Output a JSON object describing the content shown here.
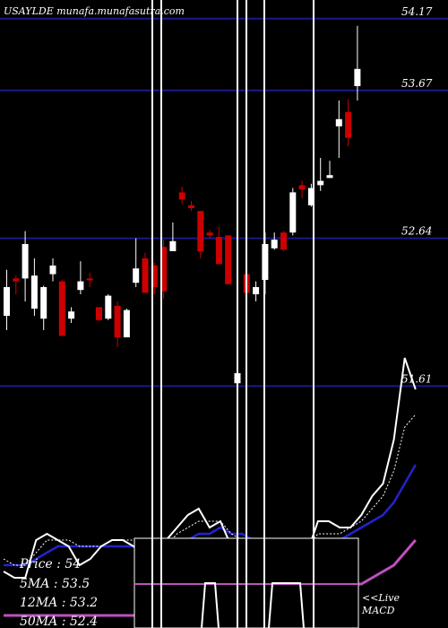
{
  "chart_data": {
    "type": "candlestick",
    "title": "USAYLDE munafa.munafasutra.com",
    "ylim": [
      51.3,
      54.3
    ],
    "levels": [
      {
        "label": "54.17",
        "value": 54.17
      },
      {
        "label": "53.67",
        "value": 53.67
      },
      {
        "label": "52.64",
        "value": 52.64
      },
      {
        "label": "51.61",
        "value": 51.61
      }
    ],
    "candles": [
      {
        "open": 52.3,
        "close": 52.1,
        "high": 52.42,
        "low": 52.0,
        "color": "white"
      },
      {
        "open": 52.36,
        "close": 52.34,
        "high": 52.38,
        "low": 52.25,
        "color": "red"
      },
      {
        "open": 52.36,
        "close": 52.6,
        "high": 52.69,
        "low": 52.2,
        "color": "white"
      },
      {
        "open": 52.15,
        "close": 52.38,
        "high": 52.5,
        "low": 52.1,
        "color": "white"
      },
      {
        "open": 52.08,
        "close": 52.3,
        "high": 52.31,
        "low": 52.0,
        "color": "white"
      },
      {
        "open": 52.39,
        "close": 52.45,
        "high": 52.5,
        "low": 52.34,
        "color": "white"
      },
      {
        "open": 52.34,
        "close": 51.96,
        "high": 52.35,
        "low": 51.96,
        "color": "red"
      },
      {
        "open": 52.08,
        "close": 52.13,
        "high": 52.16,
        "low": 52.05,
        "color": "white"
      },
      {
        "open": 52.28,
        "close": 52.34,
        "high": 52.48,
        "low": 52.25,
        "color": "white"
      },
      {
        "open": 52.36,
        "close": 52.35,
        "high": 52.4,
        "low": 52.3,
        "color": "red"
      },
      {
        "open": 52.16,
        "close": 52.07,
        "high": 52.16,
        "low": 52.06,
        "color": "red"
      },
      {
        "open": 52.08,
        "close": 52.24,
        "high": 52.25,
        "low": 52.07,
        "color": "white"
      },
      {
        "open": 52.17,
        "close": 51.95,
        "high": 52.2,
        "low": 51.88,
        "color": "red"
      },
      {
        "open": 51.95,
        "close": 52.14,
        "high": 52.15,
        "low": 51.95,
        "color": "white"
      },
      {
        "open": 52.33,
        "close": 52.43,
        "high": 52.64,
        "low": 52.3,
        "color": "white"
      },
      {
        "open": 52.5,
        "close": 52.26,
        "high": 52.54,
        "low": 52.26,
        "color": "red"
      },
      {
        "open": 52.45,
        "close": 52.3,
        "high": 52.47,
        "low": 52.25,
        "color": "red"
      },
      {
        "open": 52.58,
        "close": 52.27,
        "high": 52.63,
        "low": 52.22,
        "color": "red"
      },
      {
        "open": 52.55,
        "close": 52.62,
        "high": 52.75,
        "low": 52.55,
        "color": "white"
      },
      {
        "open": 52.96,
        "close": 52.91,
        "high": 53.0,
        "low": 52.88,
        "color": "red"
      },
      {
        "open": 52.85,
        "close": 52.87,
        "high": 52.9,
        "low": 52.83,
        "color": "red"
      },
      {
        "open": 52.83,
        "close": 52.55,
        "high": 52.83,
        "low": 52.5,
        "color": "red"
      },
      {
        "open": 52.66,
        "close": 52.68,
        "high": 52.7,
        "low": 52.64,
        "color": "red"
      },
      {
        "open": 52.65,
        "close": 52.46,
        "high": 52.72,
        "low": 52.46,
        "color": "red"
      },
      {
        "open": 52.66,
        "close": 52.32,
        "high": 52.66,
        "low": 52.32,
        "color": "red"
      },
      {
        "open": 51.7,
        "close": 51.63,
        "high": 51.78,
        "low": 51.6,
        "color": "white"
      },
      {
        "open": 52.39,
        "close": 52.26,
        "high": 52.4,
        "low": 52.2,
        "color": "red"
      },
      {
        "open": 52.3,
        "close": 52.25,
        "high": 52.34,
        "low": 52.2,
        "color": "white"
      },
      {
        "open": 52.6,
        "close": 52.35,
        "high": 52.68,
        "low": 52.25,
        "color": "white"
      },
      {
        "open": 52.57,
        "close": 52.63,
        "high": 52.68,
        "low": 52.56,
        "color": "white"
      },
      {
        "open": 52.56,
        "close": 52.68,
        "high": 52.69,
        "low": 52.55,
        "color": "red"
      },
      {
        "open": 52.68,
        "close": 52.96,
        "high": 52.99,
        "low": 52.66,
        "color": "white"
      },
      {
        "open": 53.01,
        "close": 52.98,
        "high": 53.04,
        "low": 52.92,
        "color": "red"
      },
      {
        "open": 52.87,
        "close": 52.99,
        "high": 53.02,
        "low": 52.86,
        "color": "white"
      },
      {
        "open": 53.01,
        "close": 53.04,
        "high": 53.2,
        "low": 52.97,
        "color": "white"
      },
      {
        "open": 53.06,
        "close": 53.08,
        "high": 53.18,
        "low": 53.07,
        "color": "white"
      },
      {
        "open": 53.42,
        "close": 53.47,
        "high": 53.6,
        "low": 53.2,
        "color": "white"
      },
      {
        "open": 53.52,
        "close": 53.34,
        "high": 53.61,
        "low": 53.28,
        "color": "red"
      },
      {
        "open": 53.82,
        "close": 53.7,
        "high": 54.12,
        "low": 53.6,
        "color": "white"
      }
    ],
    "indicator_lines": {
      "price": [
        0.91,
        0.92,
        0.92,
        0.86,
        0.85,
        0.86,
        0.87,
        0.9,
        0.89,
        0.87,
        0.86,
        0.86,
        0.87,
        0.89,
        0.91,
        0.86,
        0.84,
        0.82,
        0.81,
        0.84,
        0.83,
        0.87,
        0.89,
        0.88,
        0.87,
        0.88,
        0.88,
        0.88,
        0.88,
        0.83,
        0.83,
        0.84,
        0.84,
        0.82,
        0.79,
        0.77,
        0.7,
        0.57,
        0.62
      ],
      "ma5": [
        0.89,
        0.9,
        0.9,
        0.88,
        0.86,
        0.86,
        0.86,
        0.87,
        0.87,
        0.87,
        0.86,
        0.86,
        0.86,
        0.87,
        0.89,
        0.87,
        0.85,
        0.84,
        0.83,
        0.83,
        0.83,
        0.85,
        0.86,
        0.87,
        0.87,
        0.87,
        0.87,
        0.87,
        0.87,
        0.85,
        0.85,
        0.85,
        0.84,
        0.83,
        0.81,
        0.79,
        0.75,
        0.68,
        0.66
      ],
      "ma12": [
        0.9,
        0.9,
        0.9,
        0.89,
        0.88,
        0.87,
        0.87,
        0.87,
        0.87,
        0.87,
        0.87,
        0.87,
        0.87,
        0.87,
        0.88,
        0.88,
        0.87,
        0.86,
        0.85,
        0.85,
        0.84,
        0.85,
        0.85,
        0.86,
        0.86,
        0.86,
        0.86,
        0.86,
        0.86,
        0.86,
        0.86,
        0.86,
        0.85,
        0.84,
        0.83,
        0.82,
        0.8,
        0.77,
        0.74
      ],
      "ma50": [
        0.98,
        0.98,
        0.98,
        0.98,
        0.98,
        0.98,
        0.98,
        0.98,
        0.98,
        0.98,
        0.98,
        0.98,
        0.98,
        0.98,
        0.97,
        0.97,
        0.97,
        0.97,
        0.97,
        0.97,
        0.97,
        0.96,
        0.96,
        0.96,
        0.96,
        0.95,
        0.95,
        0.95,
        0.95,
        0.95,
        0.94,
        0.94,
        0.93,
        0.93,
        0.92,
        0.91,
        0.9,
        0.88,
        0.86
      ]
    },
    "macd_level": 0.75,
    "vertical_lines": [
      0.34,
      0.36,
      0.53,
      0.55,
      0.59,
      0.7
    ],
    "stats": {
      "price": "Price   : 54",
      "ma5": "5MA : 53.5",
      "ma12": "12MA : 53.2",
      "ma50": "50MA : 52.4"
    },
    "live_label": "<<Live",
    "macd_label": "MACD",
    "colors": {
      "background": "#000000",
      "up": "#ffffff",
      "down": "#cc0000",
      "level": "#1a1a8c",
      "ma12": "#2323cc",
      "ma50": "#c050c0"
    }
  }
}
